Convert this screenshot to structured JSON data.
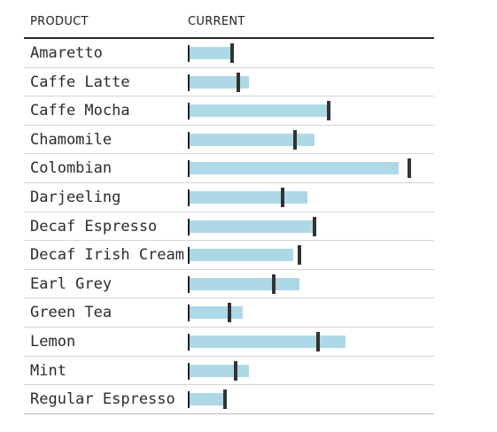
{
  "header": {
    "product_label": "PRODUCT",
    "current_label": "CURRENT"
  },
  "colors": {
    "bar": "#add8e6",
    "target": "#333333",
    "axis": "#222222"
  },
  "chart_data": {
    "type": "bar",
    "subtype": "bullet",
    "orientation": "horizontal",
    "categories": [
      "Amaretto",
      "Caffe Latte",
      "Caffe Mocha",
      "Chamomile",
      "Colombian",
      "Darjeeling",
      "Decaf Espresso",
      "Decaf Irish Cream",
      "Earl Grey",
      "Green Tea",
      "Lemon",
      "Mint",
      "Regular Espresso"
    ],
    "series": [
      {
        "values": [
          20,
          28,
          66,
          59,
          99,
          56,
          60,
          49,
          52,
          25,
          74,
          28,
          16
        ]
      },
      {
        "values": [
          20,
          23,
          66,
          50,
          104,
          44,
          59,
          52,
          40,
          19,
          61,
          22,
          17
        ]
      }
    ],
    "xlim": [
      0,
      110
    ],
    "grid": false,
    "legend": "none"
  }
}
